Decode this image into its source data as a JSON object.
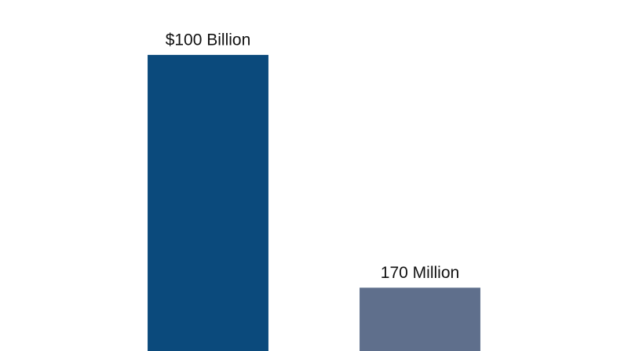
{
  "chart_data": {
    "type": "bar",
    "categories": [
      null,
      null
    ],
    "values": [
      100000000000,
      170000000
    ],
    "value_labels": [
      "$100 Billion",
      "170 Million"
    ],
    "colors": [
      "#0b4a7c",
      "#5f6f8c"
    ],
    "log_scale": true,
    "ylim": [
      30000000,
      450000000000
    ],
    "grid": false
  }
}
